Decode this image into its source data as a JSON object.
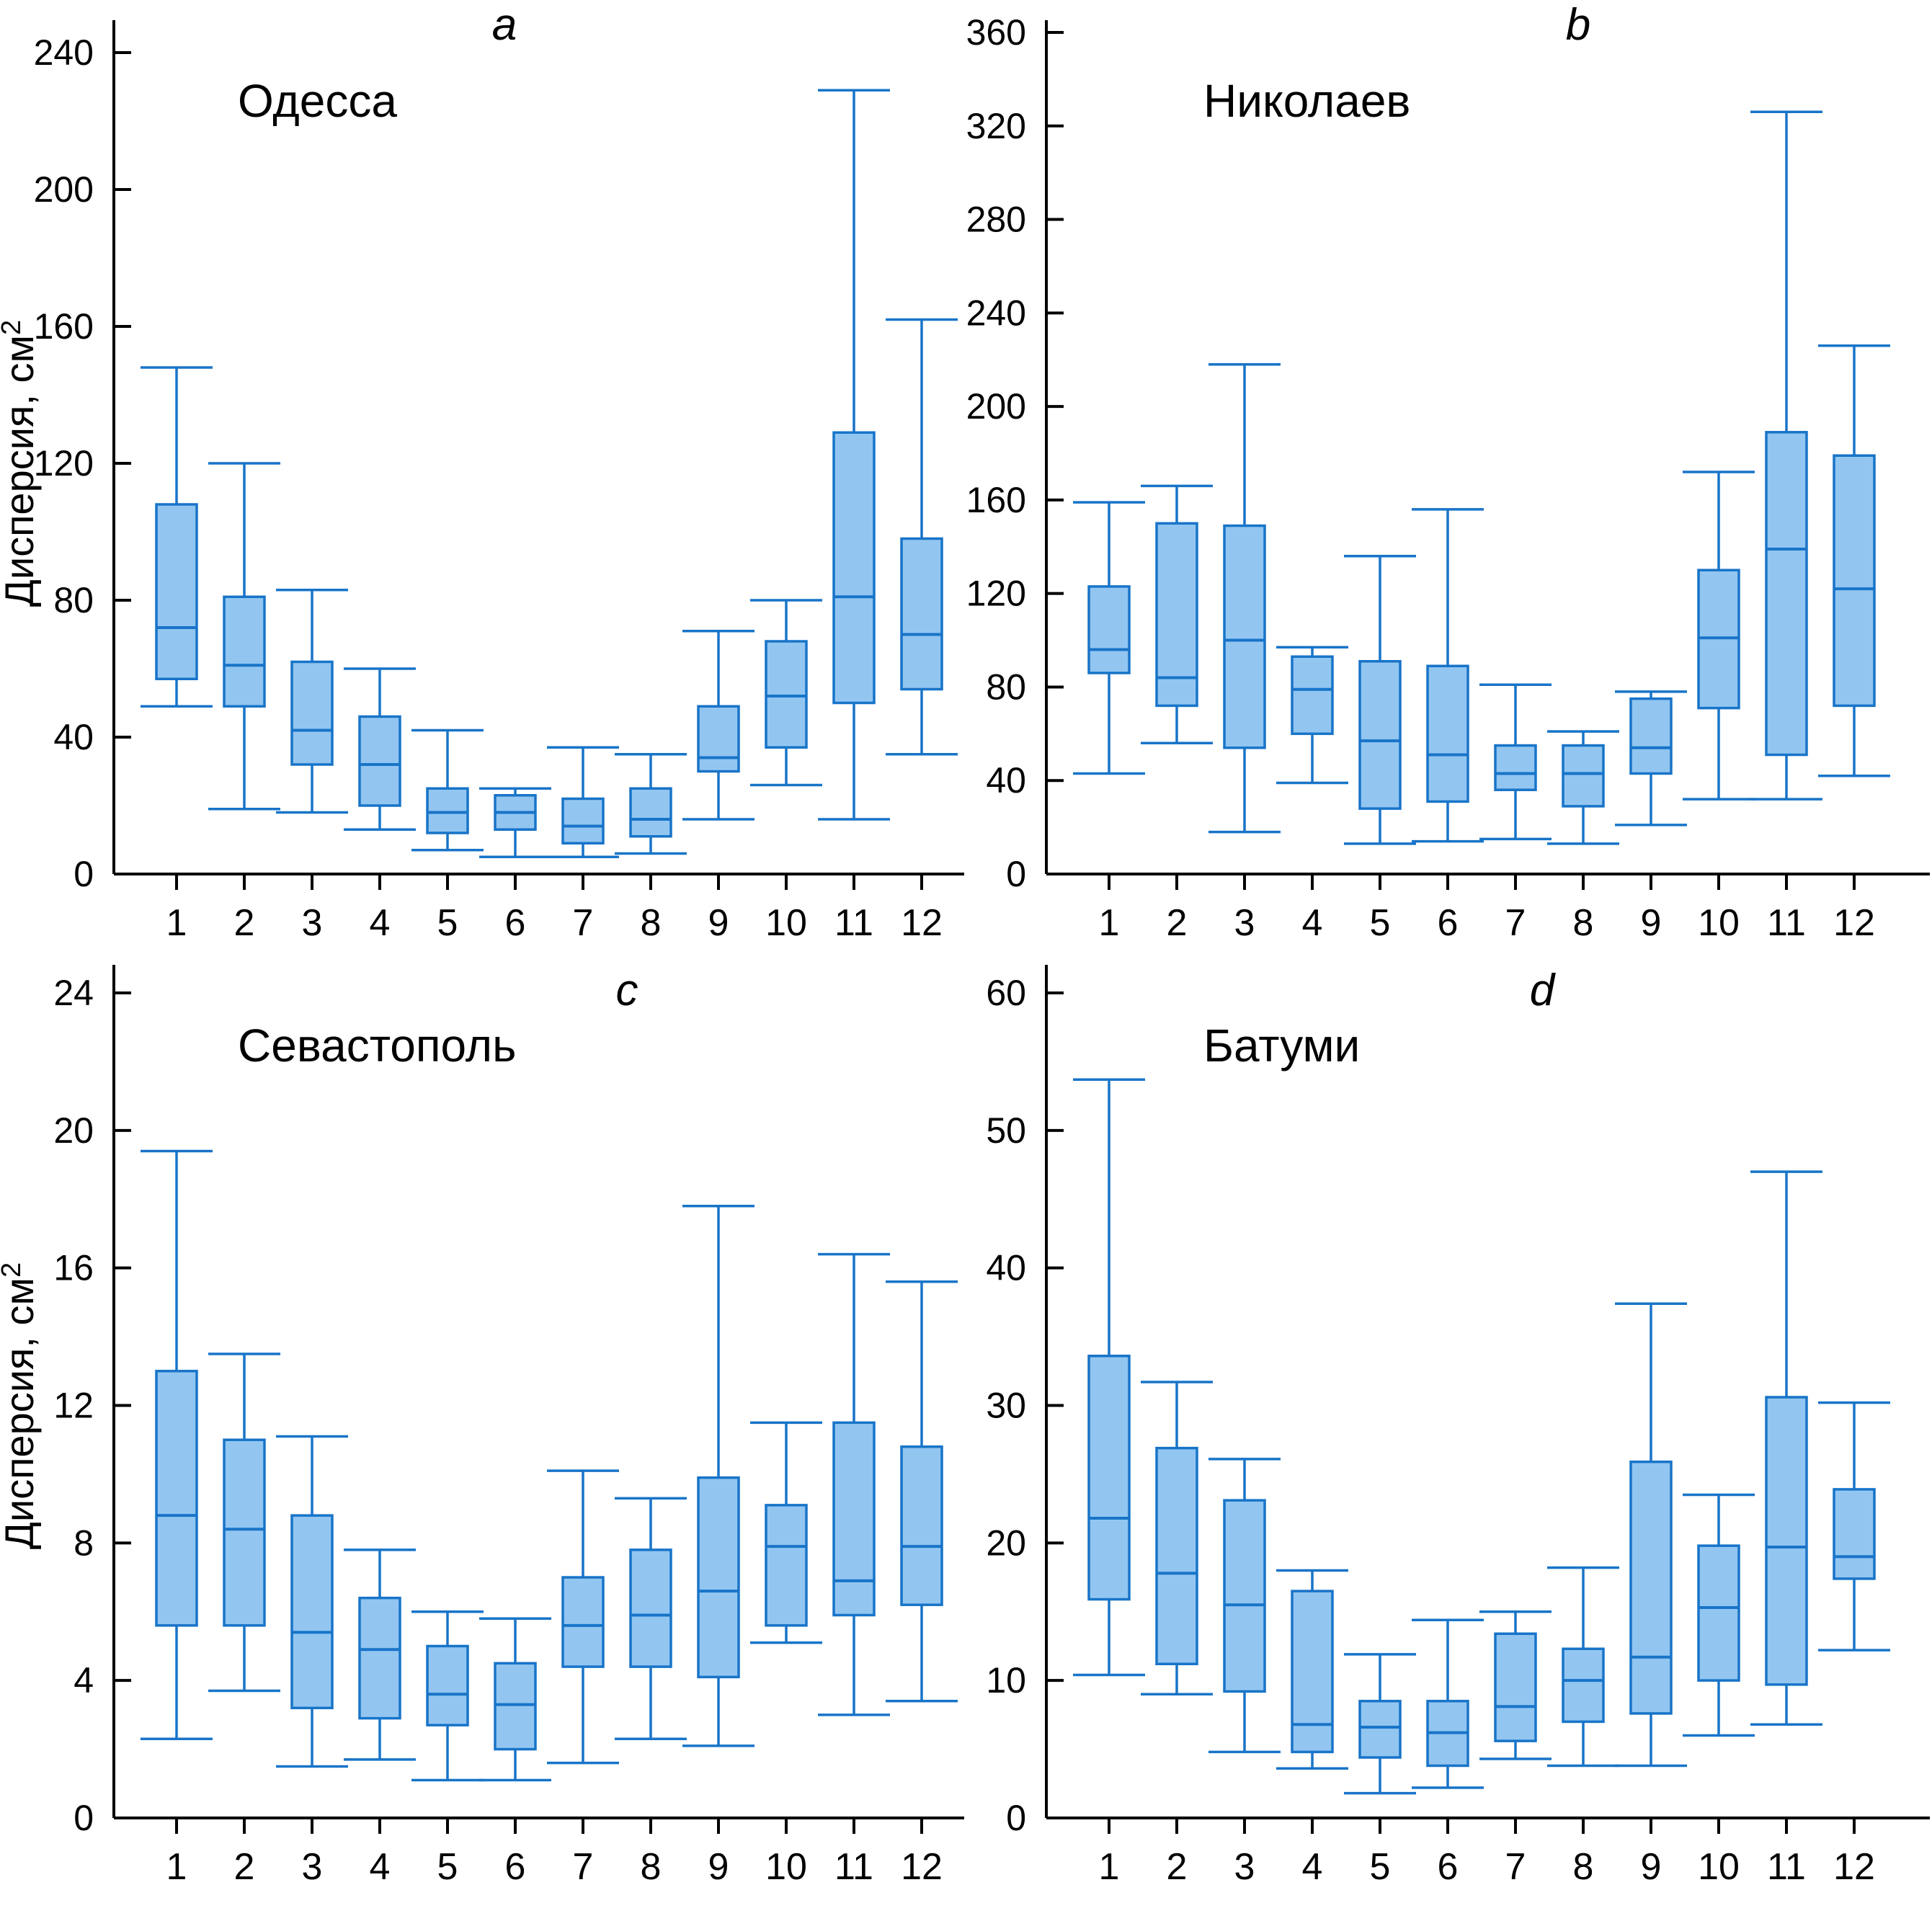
{
  "figure": {
    "background": "#ffffff",
    "panel_count": 4
  },
  "style": {
    "box_fill": "#92C6F1",
    "box_stroke": "#1874C8",
    "whisker_color": "#1874C8",
    "axis_color": "#000000",
    "text_color": "#000000"
  },
  "chart_data": [
    {
      "type": "boxplot",
      "panel_letter": "a",
      "title": "Одесса",
      "ylabel": "Дисперсия, см",
      "ylabel_superscript": "2",
      "xlabel": "",
      "ylim": [
        0,
        240
      ],
      "yticks": [
        0,
        40,
        80,
        120,
        160,
        200,
        240
      ],
      "grid": false,
      "categories": [
        "1",
        "2",
        "3",
        "4",
        "5",
        "6",
        "7",
        "8",
        "9",
        "10",
        "11",
        "12"
      ],
      "boxes": [
        {
          "month": "1",
          "low": 49,
          "q1": 57,
          "median": 72,
          "q3": 108,
          "high": 148
        },
        {
          "month": "2",
          "low": 19,
          "q1": 49,
          "median": 61,
          "q3": 81,
          "high": 120
        },
        {
          "month": "3",
          "low": 18,
          "q1": 32,
          "median": 42,
          "q3": 62,
          "high": 83
        },
        {
          "month": "4",
          "low": 13,
          "q1": 20,
          "median": 32,
          "q3": 46,
          "high": 60
        },
        {
          "month": "5",
          "low": 7,
          "q1": 12,
          "median": 18,
          "q3": 25,
          "high": 42
        },
        {
          "month": "6",
          "low": 5,
          "q1": 13,
          "median": 18,
          "q3": 23,
          "high": 25
        },
        {
          "month": "7",
          "low": 5,
          "q1": 9,
          "median": 14,
          "q3": 22,
          "high": 37
        },
        {
          "month": "8",
          "low": 6,
          "q1": 11,
          "median": 16,
          "q3": 25,
          "high": 35
        },
        {
          "month": "9",
          "low": 16,
          "q1": 30,
          "median": 34,
          "q3": 49,
          "high": 71
        },
        {
          "month": "10",
          "low": 26,
          "q1": 37,
          "median": 52,
          "q3": 68,
          "high": 80
        },
        {
          "month": "11",
          "low": 16,
          "q1": 50,
          "median": 81,
          "q3": 129,
          "high": 229
        },
        {
          "month": "12",
          "low": 35,
          "q1": 54,
          "median": 70,
          "q3": 98,
          "high": 162
        }
      ]
    },
    {
      "type": "boxplot",
      "panel_letter": "b",
      "title": "Николаев",
      "ylabel": "",
      "ylabel_superscript": "",
      "xlabel": "",
      "ylim": [
        0,
        360
      ],
      "yticks": [
        0,
        40,
        80,
        120,
        160,
        200,
        240,
        280,
        320,
        360
      ],
      "grid": false,
      "categories": [
        "1",
        "2",
        "3",
        "4",
        "5",
        "6",
        "7",
        "8",
        "9",
        "10",
        "11",
        "12"
      ],
      "boxes": [
        {
          "month": "1",
          "low": 43,
          "q1": 86,
          "median": 96,
          "q3": 123,
          "high": 159
        },
        {
          "month": "2",
          "low": 56,
          "q1": 72,
          "median": 84,
          "q3": 150,
          "high": 166
        },
        {
          "month": "3",
          "low": 18,
          "q1": 54,
          "median": 100,
          "q3": 149,
          "high": 218
        },
        {
          "month": "4",
          "low": 39,
          "q1": 60,
          "median": 79,
          "q3": 93,
          "high": 97
        },
        {
          "month": "5",
          "low": 13,
          "q1": 28,
          "median": 57,
          "q3": 91,
          "high": 136
        },
        {
          "month": "6",
          "low": 14,
          "q1": 31,
          "median": 51,
          "q3": 89,
          "high": 156
        },
        {
          "month": "7",
          "low": 15,
          "q1": 36,
          "median": 43,
          "q3": 55,
          "high": 81
        },
        {
          "month": "8",
          "low": 13,
          "q1": 29,
          "median": 43,
          "q3": 55,
          "high": 61
        },
        {
          "month": "9",
          "low": 21,
          "q1": 43,
          "median": 54,
          "q3": 75,
          "high": 78
        },
        {
          "month": "10",
          "low": 32,
          "q1": 71,
          "median": 101,
          "q3": 130,
          "high": 172
        },
        {
          "month": "11",
          "low": 32,
          "q1": 51,
          "median": 139,
          "q3": 189,
          "high": 326
        },
        {
          "month": "12",
          "low": 42,
          "q1": 72,
          "median": 122,
          "q3": 179,
          "high": 226
        }
      ]
    },
    {
      "type": "boxplot",
      "panel_letter": "c",
      "title": "Севастополь",
      "ylabel": "Дисперсия, см",
      "ylabel_superscript": "2",
      "xlabel": "",
      "ylim": [
        0,
        24
      ],
      "yticks": [
        0,
        4,
        8,
        12,
        16,
        20,
        24
      ],
      "grid": false,
      "categories": [
        "1",
        "2",
        "3",
        "4",
        "5",
        "6",
        "7",
        "8",
        "9",
        "10",
        "11",
        "12"
      ],
      "boxes": [
        {
          "month": "1",
          "low": 2.3,
          "q1": 5.6,
          "median": 8.8,
          "q3": 13.0,
          "high": 19.4
        },
        {
          "month": "2",
          "low": 3.7,
          "q1": 5.6,
          "median": 8.4,
          "q3": 11.0,
          "high": 13.5
        },
        {
          "month": "3",
          "low": 1.5,
          "q1": 3.2,
          "median": 5.4,
          "q3": 8.8,
          "high": 11.1
        },
        {
          "month": "4",
          "low": 1.7,
          "q1": 2.9,
          "median": 4.9,
          "q3": 6.4,
          "high": 7.8
        },
        {
          "month": "5",
          "low": 1.1,
          "q1": 2.7,
          "median": 3.6,
          "q3": 5.0,
          "high": 6.0
        },
        {
          "month": "6",
          "low": 1.1,
          "q1": 2.0,
          "median": 3.3,
          "q3": 4.5,
          "high": 5.8
        },
        {
          "month": "7",
          "low": 1.6,
          "q1": 4.4,
          "median": 5.6,
          "q3": 7.0,
          "high": 10.1
        },
        {
          "month": "8",
          "low": 2.3,
          "q1": 4.4,
          "median": 5.9,
          "q3": 7.8,
          "high": 9.3
        },
        {
          "month": "9",
          "low": 2.1,
          "q1": 4.1,
          "median": 6.6,
          "q3": 9.9,
          "high": 17.8
        },
        {
          "month": "10",
          "low": 5.1,
          "q1": 5.6,
          "median": 7.9,
          "q3": 9.1,
          "high": 11.5
        },
        {
          "month": "11",
          "low": 3.0,
          "q1": 5.9,
          "median": 6.9,
          "q3": 11.5,
          "high": 16.4
        },
        {
          "month": "12",
          "low": 3.4,
          "q1": 6.2,
          "median": 7.9,
          "q3": 10.8,
          "high": 15.6
        }
      ]
    },
    {
      "type": "boxplot",
      "panel_letter": "d",
      "title": "Батуми",
      "ylabel": "",
      "ylabel_superscript": "",
      "xlabel": "",
      "ylim": [
        0,
        60
      ],
      "yticks": [
        0,
        10,
        20,
        30,
        40,
        50,
        60
      ],
      "grid": false,
      "categories": [
        "1",
        "2",
        "3",
        "4",
        "5",
        "6",
        "7",
        "8",
        "9",
        "10",
        "11",
        "12"
      ],
      "boxes": [
        {
          "month": "1",
          "low": 10.4,
          "q1": 15.9,
          "median": 21.8,
          "q3": 33.6,
          "high": 53.7
        },
        {
          "month": "2",
          "low": 9.0,
          "q1": 11.2,
          "median": 17.8,
          "q3": 26.9,
          "high": 31.7
        },
        {
          "month": "3",
          "low": 4.8,
          "q1": 9.2,
          "median": 15.5,
          "q3": 23.1,
          "high": 26.1
        },
        {
          "month": "4",
          "low": 3.6,
          "q1": 4.8,
          "median": 6.8,
          "q3": 16.5,
          "high": 18.0
        },
        {
          "month": "5",
          "low": 1.8,
          "q1": 4.4,
          "median": 6.6,
          "q3": 8.5,
          "high": 11.9
        },
        {
          "month": "6",
          "low": 2.2,
          "q1": 3.8,
          "median": 6.2,
          "q3": 8.5,
          "high": 14.4
        },
        {
          "month": "7",
          "low": 4.3,
          "q1": 5.6,
          "median": 8.1,
          "q3": 13.4,
          "high": 15.0
        },
        {
          "month": "8",
          "low": 3.8,
          "q1": 7.0,
          "median": 10.0,
          "q3": 12.3,
          "high": 18.2
        },
        {
          "month": "9",
          "low": 3.8,
          "q1": 7.6,
          "median": 11.7,
          "q3": 25.9,
          "high": 37.4
        },
        {
          "month": "10",
          "low": 6.0,
          "q1": 10.0,
          "median": 15.3,
          "q3": 19.8,
          "high": 23.5
        },
        {
          "month": "11",
          "low": 6.8,
          "q1": 9.7,
          "median": 19.7,
          "q3": 30.6,
          "high": 47.0
        },
        {
          "month": "12",
          "low": 12.2,
          "q1": 17.4,
          "median": 19.0,
          "q3": 23.9,
          "high": 30.2
        }
      ]
    }
  ]
}
